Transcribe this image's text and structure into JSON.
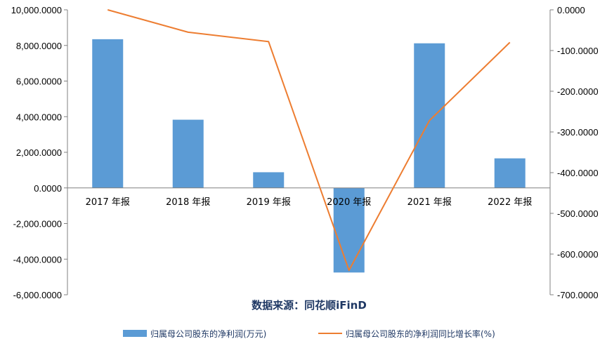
{
  "chart_data": {
    "type": "bar+line",
    "categories": [
      "2017 年报",
      "2018 年报",
      "2019 年报",
      "2020 年报",
      "2021 年报",
      "2022 年报"
    ],
    "series": [
      {
        "name": "归属母公司股东的净利润(万元)",
        "type": "bar",
        "axis": "left",
        "color": "#5b9bd5",
        "values": [
          8350,
          3830,
          880,
          -4750,
          8120,
          1660
        ]
      },
      {
        "name": "归属母公司股东的净利润同比增长率(%)",
        "type": "line",
        "axis": "right",
        "color": "#ed7d31",
        "values": [
          0,
          -55,
          -78,
          -640,
          -272,
          -80
        ]
      }
    ],
    "y_left": {
      "min": -6000,
      "max": 10000,
      "step": 2000,
      "ticks": [
        "-6,000.0000",
        "-4,000.0000",
        "-2,000.0000",
        "0.0000",
        "2,000.0000",
        "4,000.0000",
        "6,000.0000",
        "8,000.0000",
        "10,000.0000"
      ]
    },
    "y_right": {
      "min": -700,
      "max": 0,
      "step": 100,
      "ticks": [
        "-700.0000",
        "-600.0000",
        "-500.0000",
        "-400.0000",
        "-300.0000",
        "-200.0000",
        "-100.0000",
        "0.0000"
      ]
    },
    "source": "数据来源：同花顺iFinD",
    "legend_position": "bottom",
    "grid": false
  }
}
